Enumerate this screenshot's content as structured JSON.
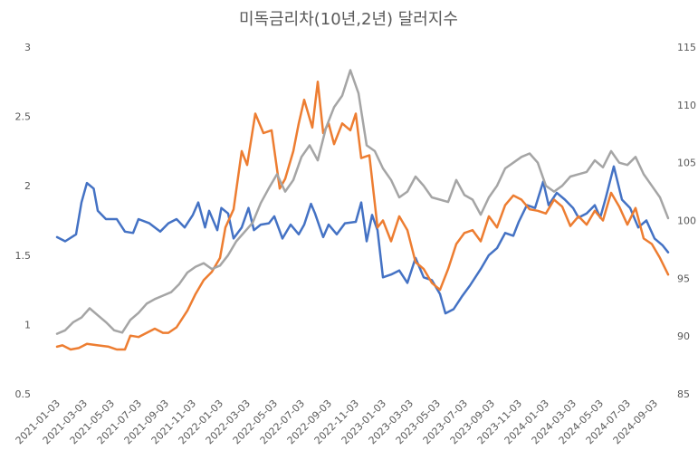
{
  "chart_data": {
    "type": "line",
    "title": "미독금리차(10년,2년) 달러지수",
    "left_axis": {
      "ticks": [
        "0.5",
        "1",
        "1.5",
        "2",
        "2.5",
        "3"
      ],
      "range": [
        0.5,
        3
      ]
    },
    "right_axis": {
      "ticks": [
        "85",
        "90",
        "95",
        "100",
        "105",
        "110",
        "115"
      ],
      "range": [
        85,
        115
      ]
    },
    "x_tick_labels": [
      "2021-01-03",
      "2021-03-03",
      "2021-05-03",
      "2021-07-03",
      "2021-09-03",
      "2021-11-03",
      "2022-01-03",
      "2022-03-03",
      "2022-05-03",
      "2022-07-03",
      "2022-09-03",
      "2022-11-03",
      "2023-01-03",
      "2023-03-03",
      "2023-05-03",
      "2023-07-03",
      "2023-09-03",
      "2023-11-03",
      "2024-01-03",
      "2024-03-03",
      "2024-05-03",
      "2024-07-03",
      "2024-09-03"
    ],
    "x_count": 23,
    "series": [
      {
        "name": "blue",
        "axis": "left",
        "color": "#4472C4",
        "points": [
          [
            0,
            1.63
          ],
          [
            0.3,
            1.6
          ],
          [
            0.7,
            1.65
          ],
          [
            0.9,
            1.88
          ],
          [
            1.1,
            2.02
          ],
          [
            1.35,
            1.98
          ],
          [
            1.5,
            1.82
          ],
          [
            1.8,
            1.76
          ],
          [
            2.2,
            1.76
          ],
          [
            2.5,
            1.67
          ],
          [
            2.8,
            1.66
          ],
          [
            3.0,
            1.76
          ],
          [
            3.4,
            1.73
          ],
          [
            3.8,
            1.67
          ],
          [
            4.1,
            1.73
          ],
          [
            4.4,
            1.76
          ],
          [
            4.7,
            1.7
          ],
          [
            5.0,
            1.79
          ],
          [
            5.2,
            1.88
          ],
          [
            5.45,
            1.7
          ],
          [
            5.6,
            1.82
          ],
          [
            5.9,
            1.68
          ],
          [
            6.05,
            1.84
          ],
          [
            6.3,
            1.8
          ],
          [
            6.5,
            1.62
          ],
          [
            6.8,
            1.7
          ],
          [
            7.05,
            1.84
          ],
          [
            7.25,
            1.68
          ],
          [
            7.5,
            1.72
          ],
          [
            7.8,
            1.73
          ],
          [
            8.0,
            1.78
          ],
          [
            8.3,
            1.62
          ],
          [
            8.6,
            1.72
          ],
          [
            8.9,
            1.65
          ],
          [
            9.1,
            1.72
          ],
          [
            9.35,
            1.87
          ],
          [
            9.5,
            1.8
          ],
          [
            9.8,
            1.63
          ],
          [
            10.0,
            1.72
          ],
          [
            10.3,
            1.65
          ],
          [
            10.6,
            1.73
          ],
          [
            11.0,
            1.74
          ],
          [
            11.2,
            1.88
          ],
          [
            11.4,
            1.6
          ],
          [
            11.6,
            1.79
          ],
          [
            11.8,
            1.68
          ],
          [
            12.0,
            1.34
          ],
          [
            12.3,
            1.36
          ],
          [
            12.6,
            1.39
          ],
          [
            12.9,
            1.3
          ],
          [
            13.2,
            1.48
          ],
          [
            13.5,
            1.34
          ],
          [
            13.8,
            1.32
          ],
          [
            14.1,
            1.22
          ],
          [
            14.3,
            1.08
          ],
          [
            14.6,
            1.11
          ],
          [
            14.9,
            1.2
          ],
          [
            15.2,
            1.28
          ],
          [
            15.6,
            1.4
          ],
          [
            15.9,
            1.5
          ],
          [
            16.2,
            1.55
          ],
          [
            16.5,
            1.66
          ],
          [
            16.8,
            1.64
          ],
          [
            17.0,
            1.74
          ],
          [
            17.3,
            1.86
          ],
          [
            17.6,
            1.84
          ],
          [
            17.9,
            2.03
          ],
          [
            18.1,
            1.86
          ],
          [
            18.4,
            1.95
          ],
          [
            18.7,
            1.9
          ],
          [
            19.0,
            1.84
          ],
          [
            19.2,
            1.77
          ],
          [
            19.5,
            1.8
          ],
          [
            19.8,
            1.86
          ],
          [
            20.0,
            1.77
          ],
          [
            20.2,
            1.91
          ],
          [
            20.5,
            2.14
          ],
          [
            20.8,
            1.9
          ],
          [
            21.1,
            1.84
          ],
          [
            21.4,
            1.7
          ],
          [
            21.7,
            1.75
          ],
          [
            22.0,
            1.62
          ],
          [
            22.3,
            1.57
          ],
          [
            22.5,
            1.52
          ]
        ]
      },
      {
        "name": "orange",
        "axis": "left",
        "color": "#ED7D31",
        "points": [
          [
            0,
            0.84
          ],
          [
            0.2,
            0.85
          ],
          [
            0.5,
            0.82
          ],
          [
            0.8,
            0.83
          ],
          [
            1.1,
            0.86
          ],
          [
            1.5,
            0.85
          ],
          [
            1.9,
            0.84
          ],
          [
            2.2,
            0.82
          ],
          [
            2.5,
            0.82
          ],
          [
            2.7,
            0.92
          ],
          [
            3.0,
            0.91
          ],
          [
            3.3,
            0.94
          ],
          [
            3.6,
            0.97
          ],
          [
            3.9,
            0.94
          ],
          [
            4.1,
            0.94
          ],
          [
            4.4,
            0.98
          ],
          [
            4.8,
            1.1
          ],
          [
            5.1,
            1.22
          ],
          [
            5.4,
            1.32
          ],
          [
            5.7,
            1.38
          ],
          [
            6.0,
            1.48
          ],
          [
            6.2,
            1.7
          ],
          [
            6.5,
            1.83
          ],
          [
            6.8,
            2.25
          ],
          [
            7.0,
            2.15
          ],
          [
            7.3,
            2.52
          ],
          [
            7.6,
            2.38
          ],
          [
            7.9,
            2.4
          ],
          [
            8.2,
            1.98
          ],
          [
            8.4,
            2.05
          ],
          [
            8.7,
            2.25
          ],
          [
            8.9,
            2.45
          ],
          [
            9.1,
            2.62
          ],
          [
            9.4,
            2.42
          ],
          [
            9.6,
            2.75
          ],
          [
            9.8,
            2.38
          ],
          [
            10.0,
            2.45
          ],
          [
            10.2,
            2.3
          ],
          [
            10.5,
            2.45
          ],
          [
            10.8,
            2.4
          ],
          [
            11.0,
            2.52
          ],
          [
            11.2,
            2.2
          ],
          [
            11.5,
            2.22
          ],
          [
            11.8,
            1.7
          ],
          [
            12.0,
            1.75
          ],
          [
            12.3,
            1.6
          ],
          [
            12.6,
            1.78
          ],
          [
            12.9,
            1.68
          ],
          [
            13.2,
            1.45
          ],
          [
            13.5,
            1.4
          ],
          [
            13.8,
            1.3
          ],
          [
            14.1,
            1.25
          ],
          [
            14.4,
            1.4
          ],
          [
            14.7,
            1.58
          ],
          [
            15.0,
            1.66
          ],
          [
            15.3,
            1.68
          ],
          [
            15.6,
            1.6
          ],
          [
            15.9,
            1.78
          ],
          [
            16.2,
            1.7
          ],
          [
            16.5,
            1.86
          ],
          [
            16.8,
            1.93
          ],
          [
            17.1,
            1.9
          ],
          [
            17.4,
            1.83
          ],
          [
            17.7,
            1.82
          ],
          [
            18.0,
            1.8
          ],
          [
            18.3,
            1.9
          ],
          [
            18.6,
            1.85
          ],
          [
            18.9,
            1.71
          ],
          [
            19.2,
            1.78
          ],
          [
            19.5,
            1.72
          ],
          [
            19.8,
            1.82
          ],
          [
            20.1,
            1.75
          ],
          [
            20.4,
            1.95
          ],
          [
            20.7,
            1.85
          ],
          [
            21.0,
            1.72
          ],
          [
            21.3,
            1.84
          ],
          [
            21.6,
            1.62
          ],
          [
            21.9,
            1.58
          ],
          [
            22.2,
            1.48
          ],
          [
            22.5,
            1.36
          ]
        ]
      },
      {
        "name": "gray",
        "axis": "right",
        "color": "#A5A5A5",
        "points": [
          [
            0,
            90.2
          ],
          [
            0.3,
            90.5
          ],
          [
            0.6,
            91.2
          ],
          [
            0.9,
            91.6
          ],
          [
            1.2,
            92.4
          ],
          [
            1.5,
            91.8
          ],
          [
            1.8,
            91.2
          ],
          [
            2.1,
            90.5
          ],
          [
            2.4,
            90.3
          ],
          [
            2.7,
            91.4
          ],
          [
            3.0,
            92.0
          ],
          [
            3.3,
            92.8
          ],
          [
            3.6,
            93.2
          ],
          [
            3.9,
            93.5
          ],
          [
            4.2,
            93.8
          ],
          [
            4.5,
            94.5
          ],
          [
            4.8,
            95.5
          ],
          [
            5.1,
            96.0
          ],
          [
            5.4,
            96.3
          ],
          [
            5.7,
            95.8
          ],
          [
            6.0,
            96.1
          ],
          [
            6.3,
            97.0
          ],
          [
            6.6,
            98.2
          ],
          [
            6.9,
            99.0
          ],
          [
            7.2,
            99.8
          ],
          [
            7.5,
            101.5
          ],
          [
            7.8,
            102.8
          ],
          [
            8.1,
            104.0
          ],
          [
            8.4,
            102.5
          ],
          [
            8.7,
            103.5
          ],
          [
            9.0,
            105.5
          ],
          [
            9.3,
            106.5
          ],
          [
            9.6,
            105.2
          ],
          [
            9.9,
            108.0
          ],
          [
            10.2,
            109.8
          ],
          [
            10.5,
            110.8
          ],
          [
            10.8,
            113.0
          ],
          [
            11.1,
            111.0
          ],
          [
            11.4,
            106.5
          ],
          [
            11.7,
            106.0
          ],
          [
            12.0,
            104.5
          ],
          [
            12.3,
            103.5
          ],
          [
            12.6,
            102.0
          ],
          [
            12.9,
            102.5
          ],
          [
            13.2,
            103.8
          ],
          [
            13.5,
            103.0
          ],
          [
            13.8,
            102.0
          ],
          [
            14.1,
            101.8
          ],
          [
            14.4,
            101.6
          ],
          [
            14.7,
            103.5
          ],
          [
            15.0,
            102.2
          ],
          [
            15.3,
            101.8
          ],
          [
            15.6,
            100.5
          ],
          [
            15.9,
            102.0
          ],
          [
            16.2,
            103.0
          ],
          [
            16.5,
            104.5
          ],
          [
            16.8,
            105.0
          ],
          [
            17.1,
            105.5
          ],
          [
            17.4,
            105.8
          ],
          [
            17.7,
            105.0
          ],
          [
            18.0,
            103.0
          ],
          [
            18.3,
            102.5
          ],
          [
            18.6,
            103.0
          ],
          [
            18.9,
            103.8
          ],
          [
            19.2,
            104.0
          ],
          [
            19.5,
            104.2
          ],
          [
            19.8,
            105.2
          ],
          [
            20.1,
            104.6
          ],
          [
            20.4,
            106.0
          ],
          [
            20.7,
            105.0
          ],
          [
            21.0,
            104.8
          ],
          [
            21.3,
            105.5
          ],
          [
            21.6,
            104.0
          ],
          [
            21.9,
            103.0
          ],
          [
            22.2,
            102.0
          ],
          [
            22.5,
            100.2
          ]
        ]
      }
    ]
  }
}
